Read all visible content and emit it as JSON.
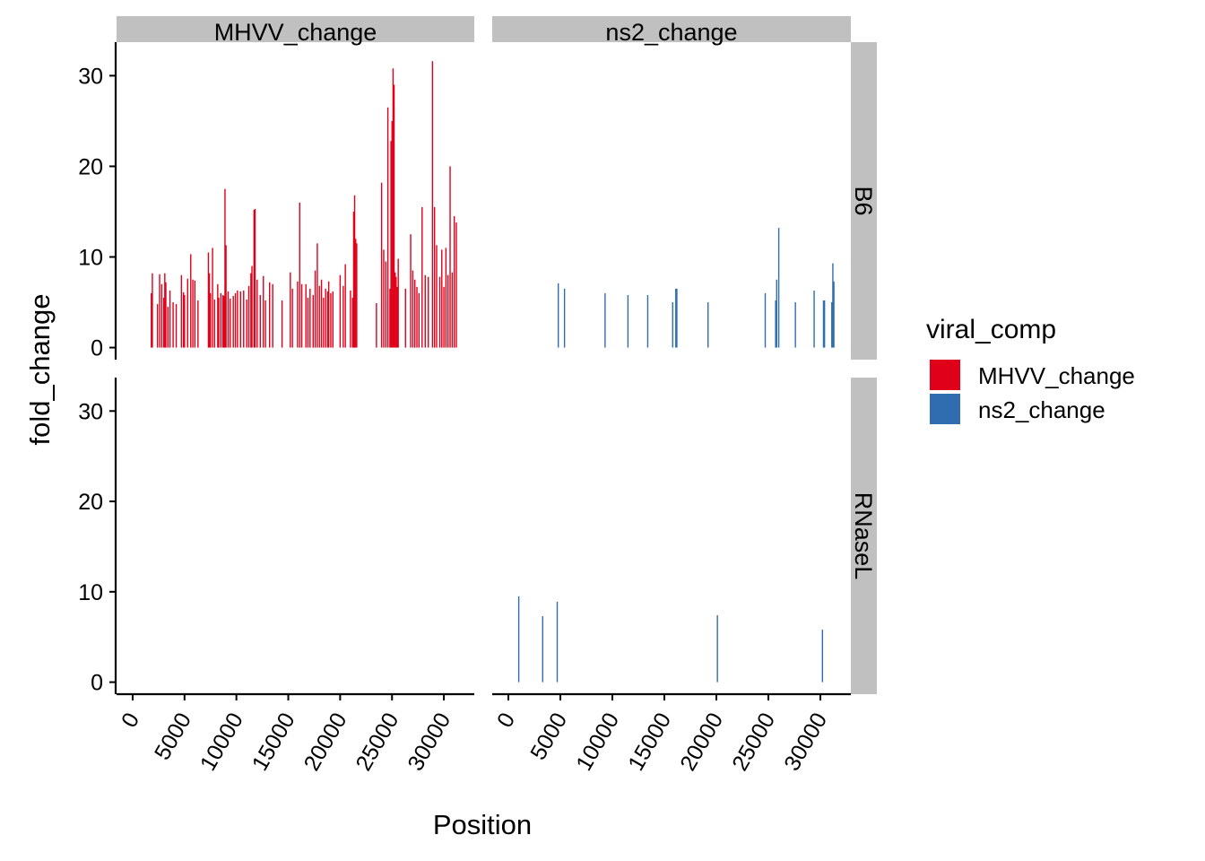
{
  "chart_data": {
    "type": "bar",
    "facet_cols": [
      "MHVV_change",
      "ns2_change"
    ],
    "facet_rows": [
      "B6",
      "RNaseL"
    ],
    "xlabel": "Position",
    "ylabel": "fold_change",
    "xlim": [
      0,
      32000
    ],
    "ylim": [
      0,
      33
    ],
    "x_ticks": [
      0,
      5000,
      10000,
      15000,
      20000,
      25000,
      30000
    ],
    "y_ticks": [
      0,
      10,
      20,
      30
    ],
    "legend": {
      "title": "viral_comp",
      "placement": "right",
      "entries": [
        {
          "label": "MHVV_change",
          "color": "#e0001a"
        },
        {
          "label": "ns2_change",
          "color": "#2f6db0"
        }
      ]
    },
    "panels": [
      {
        "col": "MHVV_change",
        "row": "B6",
        "color": "#e0001a",
        "bars": [
          [
            1800,
            6.0
          ],
          [
            1900,
            8.2
          ],
          [
            2400,
            4.8
          ],
          [
            2600,
            8.1
          ],
          [
            2800,
            7.0
          ],
          [
            3000,
            5.5
          ],
          [
            3100,
            8.2
          ],
          [
            3200,
            7.2
          ],
          [
            3400,
            4.5
          ],
          [
            3600,
            6.3
          ],
          [
            3900,
            5.0
          ],
          [
            4200,
            4.8
          ],
          [
            4700,
            8.0
          ],
          [
            4900,
            6.1
          ],
          [
            5000,
            5.8
          ],
          [
            5300,
            7.6
          ],
          [
            5600,
            10.3
          ],
          [
            5800,
            7.5
          ],
          [
            6000,
            7.4
          ],
          [
            6300,
            5.2
          ],
          [
            7300,
            10.5
          ],
          [
            7400,
            8.2
          ],
          [
            7500,
            6.0
          ],
          [
            7700,
            11.0
          ],
          [
            7900,
            5.3
          ],
          [
            8200,
            7.0
          ],
          [
            8300,
            5.5
          ],
          [
            8500,
            6.0
          ],
          [
            8700,
            5.8
          ],
          [
            8800,
            5.7
          ],
          [
            8900,
            17.5
          ],
          [
            9000,
            11.3
          ],
          [
            9200,
            6.2
          ],
          [
            9400,
            5.4
          ],
          [
            9700,
            5.7
          ],
          [
            9900,
            6.0
          ],
          [
            10100,
            6.3
          ],
          [
            10400,
            6.2
          ],
          [
            10700,
            6.3
          ],
          [
            11000,
            5.3
          ],
          [
            11200,
            6.8
          ],
          [
            11400,
            8.2
          ],
          [
            11500,
            9.0
          ],
          [
            11700,
            15.2
          ],
          [
            11800,
            15.3
          ],
          [
            12000,
            7.5
          ],
          [
            12300,
            5.8
          ],
          [
            12600,
            7.9
          ],
          [
            12800,
            5.2
          ],
          [
            13200,
            7.2
          ],
          [
            13500,
            7.0
          ],
          [
            14400,
            5.2
          ],
          [
            15200,
            8.3
          ],
          [
            15400,
            6.5
          ],
          [
            15900,
            7.3
          ],
          [
            16100,
            16.0
          ],
          [
            16300,
            7.0
          ],
          [
            16700,
            7.0
          ],
          [
            16900,
            5.5
          ],
          [
            17100,
            6.5
          ],
          [
            17400,
            5.8
          ],
          [
            17600,
            8.5
          ],
          [
            17800,
            11.5
          ],
          [
            18000,
            6.8
          ],
          [
            18200,
            7.5
          ],
          [
            18400,
            5.5
          ],
          [
            18600,
            6.5
          ],
          [
            18800,
            6.2
          ],
          [
            18900,
            7.3
          ],
          [
            19100,
            6.0
          ],
          [
            19300,
            6.2
          ],
          [
            20000,
            8.0
          ],
          [
            20300,
            6.8
          ],
          [
            20500,
            9.2
          ],
          [
            21000,
            6.3
          ],
          [
            21200,
            5.5
          ],
          [
            21300,
            15.0
          ],
          [
            21400,
            16.8
          ],
          [
            21500,
            12.0
          ],
          [
            21600,
            11.5
          ],
          [
            23500,
            4.9
          ],
          [
            24000,
            18.2
          ],
          [
            24200,
            10.8
          ],
          [
            24400,
            9.5
          ],
          [
            24600,
            26.5
          ],
          [
            24800,
            6.5
          ],
          [
            24900,
            22.8
          ],
          [
            25000,
            25.0
          ],
          [
            25100,
            30.8
          ],
          [
            25200,
            29.0
          ],
          [
            25300,
            8.3
          ],
          [
            25400,
            7.8
          ],
          [
            25500,
            6.7
          ],
          [
            25600,
            9.8
          ],
          [
            26300,
            6.5
          ],
          [
            26800,
            12.5
          ],
          [
            27000,
            8.5
          ],
          [
            27200,
            7.5
          ],
          [
            27400,
            6.7
          ],
          [
            27600,
            6.0
          ],
          [
            27900,
            15.5
          ],
          [
            28200,
            8.0
          ],
          [
            28500,
            7.8
          ],
          [
            28900,
            31.6
          ],
          [
            29100,
            15.5
          ],
          [
            29300,
            11.3
          ],
          [
            29600,
            7.8
          ],
          [
            29800,
            10.8
          ],
          [
            30000,
            6.7
          ],
          [
            30200,
            11.0
          ],
          [
            30400,
            8.0
          ],
          [
            30600,
            20.0
          ],
          [
            30800,
            8.3
          ],
          [
            31000,
            14.5
          ],
          [
            31200,
            13.8
          ]
        ]
      },
      {
        "col": "ns2_change",
        "row": "B6",
        "color": "#2f6db0",
        "bars": [
          [
            4800,
            7.1
          ],
          [
            5400,
            6.5
          ],
          [
            9300,
            6.0
          ],
          [
            11500,
            5.8
          ],
          [
            13400,
            5.8
          ],
          [
            15800,
            5.0
          ],
          [
            16100,
            6.5
          ],
          [
            16200,
            6.5
          ],
          [
            19200,
            5.0
          ],
          [
            24700,
            6.0
          ],
          [
            25700,
            5.2
          ],
          [
            25800,
            7.5
          ],
          [
            26000,
            13.2
          ],
          [
            27600,
            5.0
          ],
          [
            29400,
            6.3
          ],
          [
            30300,
            5.2
          ],
          [
            30400,
            5.2
          ],
          [
            31100,
            5.0
          ],
          [
            31200,
            9.3
          ],
          [
            31300,
            7.3
          ]
        ]
      },
      {
        "col": "MHVV_change",
        "row": "RNaseL",
        "color": "#e0001a",
        "bars": []
      },
      {
        "col": "ns2_change",
        "row": "RNaseL",
        "color": "#2f6db0",
        "bars": [
          [
            1000,
            9.5
          ],
          [
            3300,
            7.3
          ],
          [
            4700,
            8.9
          ],
          [
            20100,
            7.4
          ],
          [
            30200,
            5.8
          ]
        ]
      }
    ]
  }
}
